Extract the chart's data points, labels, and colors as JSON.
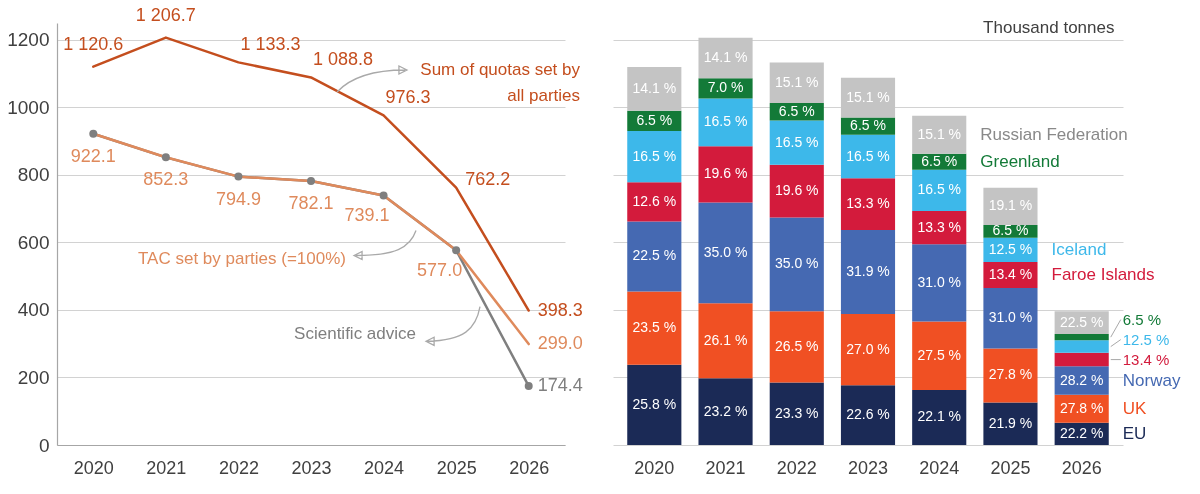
{
  "chart_data": [
    {
      "type": "line",
      "categories": [
        "2020",
        "2021",
        "2022",
        "2023",
        "2024",
        "2025",
        "2026"
      ],
      "series": [
        {
          "name": "Sum of quotas set by all parties",
          "color": "#c44e1e",
          "values": [
            1120.6,
            1206.7,
            1133.3,
            1088.8,
            976.3,
            762.2,
            398.3
          ],
          "value_labels": [
            "1 120.6",
            "1 206.7",
            "1 133.3",
            "1 088.8",
            "976.3",
            "762.2",
            "398.3"
          ]
        },
        {
          "name": "TAC set by parties (=100%)",
          "color": "#df8a5c",
          "values": [
            922.1,
            852.3,
            794.9,
            782.1,
            739.1,
            577.0,
            299.0
          ],
          "value_labels": [
            "922.1",
            "852.3",
            "794.9",
            "782.1",
            "739.1",
            "577.0",
            "299.0"
          ]
        },
        {
          "name": "Scientific advice",
          "color": "#7f7f7f",
          "marker": "circle",
          "values": [
            922,
            852,
            795,
            782,
            739,
            577,
            174.4
          ],
          "value_labels": [
            null,
            null,
            null,
            null,
            null,
            null,
            "174.4"
          ]
        }
      ],
      "ylim": [
        0,
        1250
      ],
      "yticks": [
        0,
        200,
        400,
        600,
        800,
        1000,
        1200
      ],
      "grid": "y"
    },
    {
      "type": "bar",
      "stacked": true,
      "categories": [
        "2020",
        "2021",
        "2022",
        "2023",
        "2024",
        "2025",
        "2026"
      ],
      "ylabel": "Thousand tonnes",
      "series": [
        {
          "name": "EU",
          "color": "#1b2a56",
          "values": [
            238,
            198,
            185,
            177,
            163,
            126,
            66
          ]
        },
        {
          "name": "UK",
          "color": "#f05023",
          "values": [
            217,
            222,
            211,
            211,
            203,
            160,
            83
          ]
        },
        {
          "name": "Norway",
          "color": "#4569b2",
          "values": [
            207,
            298,
            278,
            249,
            229,
            179,
            84
          ]
        },
        {
          "name": "Faroe Islands",
          "color": "#d31b3c",
          "values": [
            116,
            167,
            156,
            153,
            98,
            77,
            40
          ]
        },
        {
          "name": "Iceland",
          "color": "#3db8ea",
          "values": [
            152,
            141,
            131,
            129,
            122,
            72,
            37
          ]
        },
        {
          "name": "Greenland",
          "color": "#137a38",
          "values": [
            60,
            60,
            52,
            51,
            48,
            38,
            19
          ]
        },
        {
          "name": "Russian Federation",
          "color": "#c4c4c4",
          "values": [
            130,
            120,
            120,
            118,
            112,
            110,
            67
          ]
        }
      ],
      "yticks": [
        0,
        200,
        400,
        600,
        800,
        1000,
        1200
      ],
      "grid": "y",
      "tick_labels": "x",
      "annotations": [
        "25.8 %",
        "23.5 %",
        "22.5 %",
        "12.6 %",
        "16.5 %",
        "6.5 %",
        "14.1 %",
        "23.2 %",
        "26.1 %",
        "35.0 %",
        "19.6 %",
        "16.5 %",
        "7.0 %",
        "14.1 %",
        "23.3 %",
        "26.5 %",
        "35.0 %",
        "19.6 %",
        "16.5 %",
        "6.5 %",
        "15.1 %",
        "22.6 %",
        "27.0 %",
        "31.9 %",
        "13.3 %",
        "16.5 %",
        "6.5 %",
        "15.1 %",
        "22.1 %",
        "27.5 %",
        "31.0 %",
        "13.3 %",
        "16.5 %",
        "6.5 %",
        "15.1 %",
        "21.9 %",
        "27.8 %",
        "31.0 %",
        "13.4 %",
        "12.5 %",
        "6.5 %",
        "19.1 %",
        "22.2 %",
        "27.8 %",
        "28.2 %",
        "13.4 %",
        "12.5 %",
        "6.5 %",
        "22.5 %"
      ]
    }
  ]
}
